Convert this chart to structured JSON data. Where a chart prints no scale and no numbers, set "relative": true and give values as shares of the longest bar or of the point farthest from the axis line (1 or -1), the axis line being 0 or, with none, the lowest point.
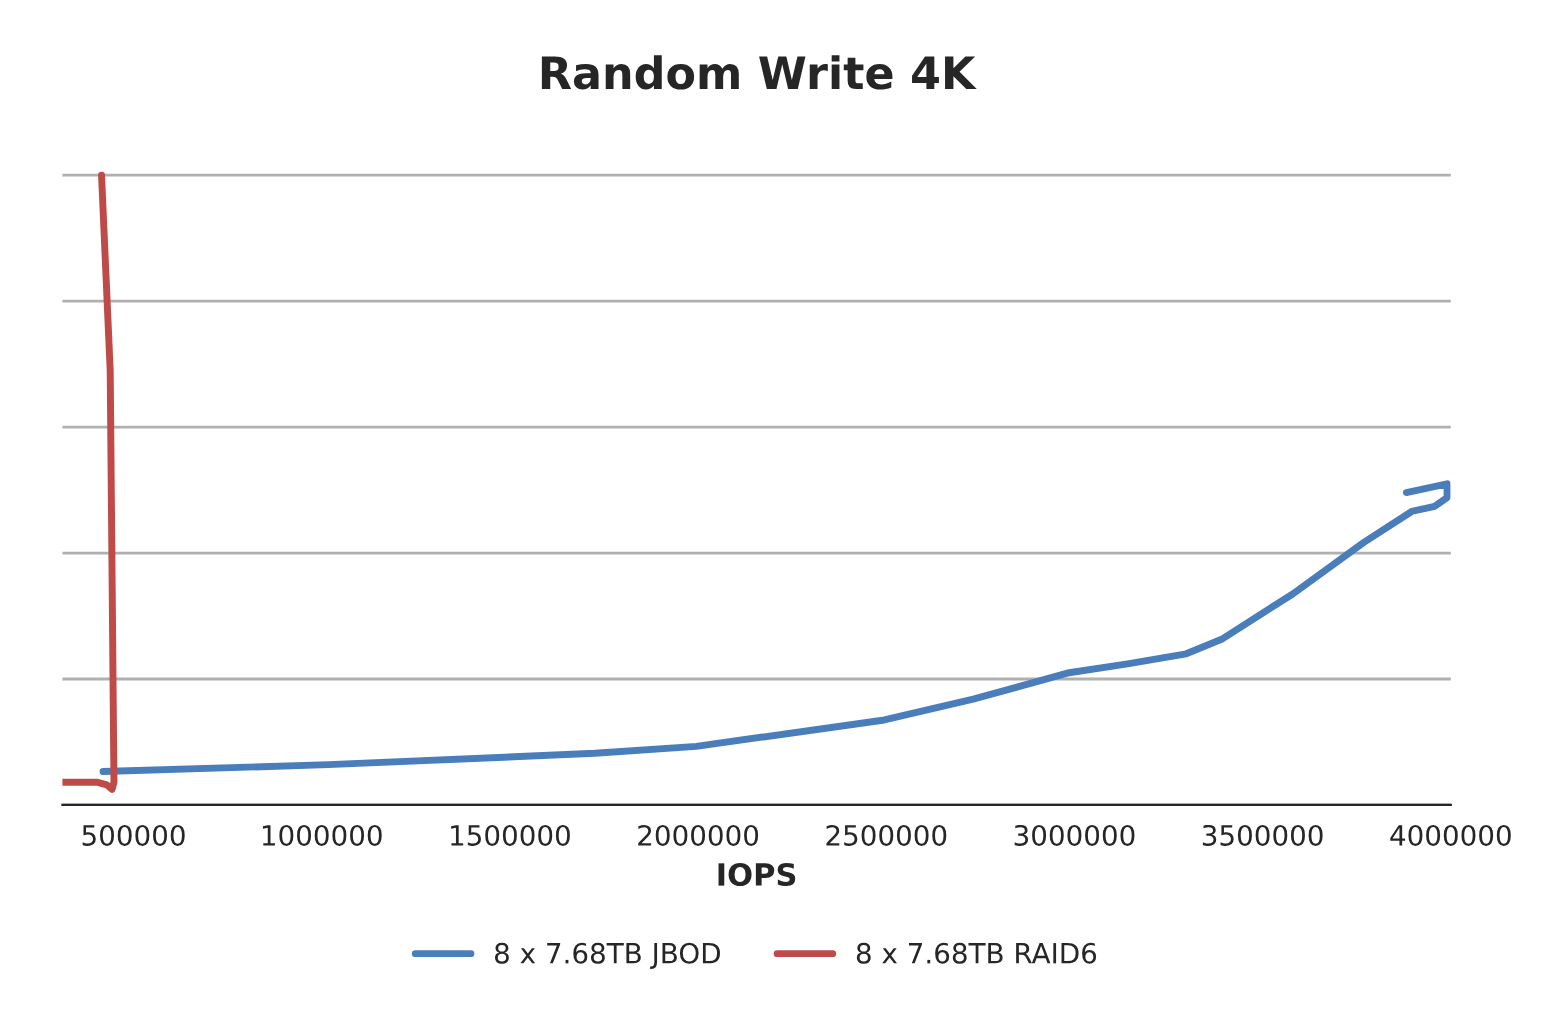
{
  "chart_data": {
    "type": "line",
    "title": "Random Write 4K",
    "xlabel": "IOPS",
    "relative": true,
    "xlim": [
      311000,
      4000000
    ],
    "xticks": [
      500000,
      1000000,
      1500000,
      2000000,
      2500000,
      3000000,
      3500000,
      4000000
    ],
    "grid": "y",
    "legend": "bottom",
    "tick_labels": "x",
    "marker": "none",
    "line_style": "solid",
    "series": [
      {
        "name": "8 x 7.68TB JBOD",
        "color": "#4a7ebb",
        "x": [
          419000,
          1018000,
          1726000,
          1995000,
          2495000,
          2731000,
          2986000,
          3141000,
          3297000,
          3391000,
          3580000,
          3769000,
          3896000,
          3957000,
          3990000,
          3990000,
          3882000
        ],
        "values": [
          0.053,
          0.064,
          0.082,
          0.093,
          0.135,
          0.168,
          0.21,
          0.224,
          0.24,
          0.263,
          0.335,
          0.417,
          0.466,
          0.474,
          0.488,
          0.51,
          0.496
        ]
      },
      {
        "name": "8 x 7.68TB RAID6",
        "color": "#be4b48",
        "x": [
          311000,
          405000,
          429000,
          443000,
          448000,
          438000,
          415000
        ],
        "values": [
          0.036,
          0.036,
          0.032,
          0.025,
          0.036,
          0.69,
          1
        ]
      }
    ]
  }
}
